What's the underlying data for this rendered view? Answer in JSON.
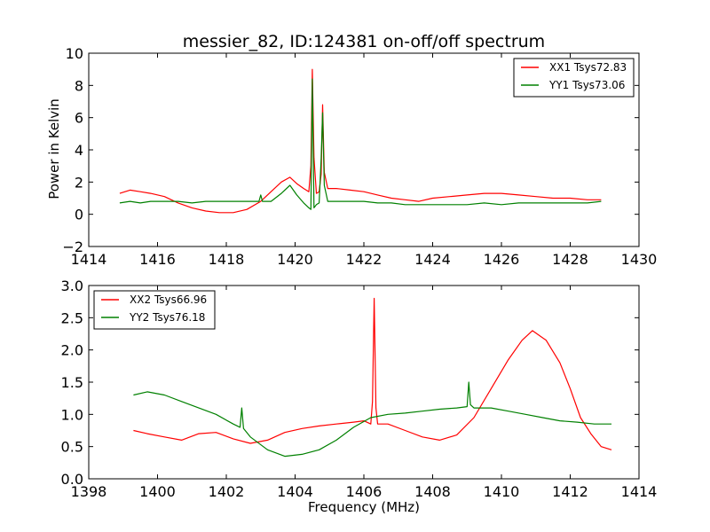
{
  "title": "messier_82, ID:124381 on-off/off spectrum",
  "chart_data": [
    {
      "type": "line",
      "ylabel": "Power in Kelvin",
      "xlabel": "",
      "xlim": [
        1414,
        1430
      ],
      "ylim": [
        -2,
        10
      ],
      "x_ticks": [
        1414,
        1416,
        1418,
        1420,
        1422,
        1424,
        1426,
        1428,
        1430
      ],
      "y_ticks": [
        -2,
        0,
        2,
        4,
        6,
        8,
        10
      ],
      "legend_position": "top-right",
      "series": [
        {
          "name": "XX1 Tsys72.83",
          "color": "#ff0000",
          "x": [
            1414.9,
            1415.2,
            1415.5,
            1415.8,
            1416.2,
            1416.6,
            1417.0,
            1417.4,
            1417.8,
            1418.2,
            1418.6,
            1419.0,
            1419.3,
            1419.6,
            1419.85,
            1420.05,
            1420.25,
            1420.4,
            1420.46,
            1420.5,
            1420.55,
            1420.62,
            1420.7,
            1420.76,
            1420.8,
            1420.85,
            1420.95,
            1421.2,
            1421.6,
            1422.0,
            1422.4,
            1422.8,
            1423.2,
            1423.6,
            1424.0,
            1424.5,
            1425.0,
            1425.5,
            1426.0,
            1426.5,
            1427.0,
            1427.5,
            1428.0,
            1428.5,
            1428.9
          ],
          "y": [
            1.3,
            1.5,
            1.4,
            1.3,
            1.1,
            0.7,
            0.4,
            0.2,
            0.1,
            0.1,
            0.3,
            0.8,
            1.4,
            2.0,
            2.3,
            1.9,
            1.6,
            1.4,
            3.0,
            9.0,
            3.5,
            1.3,
            1.4,
            2.5,
            6.8,
            2.6,
            1.6,
            1.6,
            1.5,
            1.4,
            1.2,
            1.0,
            0.9,
            0.8,
            1.0,
            1.1,
            1.2,
            1.3,
            1.3,
            1.2,
            1.1,
            1.0,
            1.0,
            0.9,
            0.9
          ]
        },
        {
          "name": "YY1 Tsys73.06",
          "color": "#008000",
          "x": [
            1414.9,
            1415.2,
            1415.5,
            1415.8,
            1416.2,
            1416.6,
            1417.0,
            1417.4,
            1417.8,
            1418.2,
            1418.6,
            1418.95,
            1419.0,
            1419.05,
            1419.3,
            1419.6,
            1419.85,
            1420.05,
            1420.25,
            1420.4,
            1420.46,
            1420.5,
            1420.55,
            1420.62,
            1420.7,
            1420.76,
            1420.8,
            1420.85,
            1420.95,
            1421.2,
            1421.6,
            1422.0,
            1422.4,
            1422.8,
            1423.2,
            1423.6,
            1424.0,
            1424.5,
            1425.0,
            1425.5,
            1426.0,
            1426.5,
            1427.0,
            1427.5,
            1428.0,
            1428.5,
            1428.9
          ],
          "y": [
            0.7,
            0.8,
            0.7,
            0.8,
            0.8,
            0.8,
            0.7,
            0.8,
            0.8,
            0.8,
            0.8,
            0.8,
            1.2,
            0.8,
            0.8,
            1.3,
            1.8,
            1.2,
            0.7,
            0.4,
            0.3,
            8.4,
            0.4,
            0.6,
            0.7,
            3.5,
            6.3,
            1.8,
            0.8,
            0.8,
            0.8,
            0.8,
            0.7,
            0.7,
            0.6,
            0.6,
            0.6,
            0.6,
            0.6,
            0.7,
            0.6,
            0.7,
            0.7,
            0.7,
            0.7,
            0.7,
            0.8
          ]
        }
      ]
    },
    {
      "type": "line",
      "ylabel": "",
      "xlabel": "Frequency (MHz)",
      "xlim": [
        1398,
        1414
      ],
      "ylim": [
        0.0,
        3.0
      ],
      "x_ticks": [
        1398,
        1400,
        1402,
        1404,
        1406,
        1408,
        1410,
        1412,
        1414
      ],
      "y_ticks": [
        0.0,
        0.5,
        1.0,
        1.5,
        2.0,
        2.5,
        3.0
      ],
      "legend_position": "top-left",
      "series": [
        {
          "name": "XX2 Tsys66.96",
          "color": "#ff0000",
          "x": [
            1399.3,
            1399.7,
            1400.2,
            1400.7,
            1401.2,
            1401.7,
            1402.2,
            1402.7,
            1403.2,
            1403.7,
            1404.2,
            1404.7,
            1405.2,
            1405.7,
            1406.0,
            1406.2,
            1406.25,
            1406.3,
            1406.35,
            1406.4,
            1406.7,
            1407.2,
            1407.7,
            1408.2,
            1408.7,
            1409.2,
            1409.7,
            1410.2,
            1410.6,
            1410.9,
            1411.3,
            1411.7,
            1412.0,
            1412.3,
            1412.6,
            1412.9,
            1413.2
          ],
          "y": [
            0.75,
            0.7,
            0.65,
            0.6,
            0.7,
            0.72,
            0.62,
            0.55,
            0.6,
            0.72,
            0.78,
            0.82,
            0.85,
            0.88,
            0.9,
            0.85,
            1.2,
            2.8,
            1.1,
            0.85,
            0.85,
            0.75,
            0.65,
            0.6,
            0.68,
            0.95,
            1.4,
            1.85,
            2.15,
            2.3,
            2.15,
            1.8,
            1.4,
            0.95,
            0.7,
            0.5,
            0.45
          ]
        },
        {
          "name": "YY2 Tsys76.18",
          "color": "#008000",
          "x": [
            1399.3,
            1399.7,
            1400.2,
            1400.7,
            1401.2,
            1401.7,
            1402.2,
            1402.4,
            1402.45,
            1402.5,
            1402.7,
            1403.2,
            1403.7,
            1404.2,
            1404.7,
            1405.2,
            1405.7,
            1406.2,
            1406.7,
            1407.2,
            1407.7,
            1408.2,
            1408.7,
            1409.0,
            1409.05,
            1409.1,
            1409.2,
            1409.7,
            1410.2,
            1410.7,
            1411.2,
            1411.7,
            1412.2,
            1412.7,
            1413.2
          ],
          "y": [
            1.3,
            1.35,
            1.3,
            1.2,
            1.1,
            1.0,
            0.85,
            0.8,
            1.1,
            0.78,
            0.65,
            0.45,
            0.35,
            0.38,
            0.45,
            0.6,
            0.8,
            0.95,
            1.0,
            1.02,
            1.05,
            1.08,
            1.1,
            1.12,
            1.5,
            1.15,
            1.1,
            1.1,
            1.05,
            1.0,
            0.95,
            0.9,
            0.88,
            0.85,
            0.85
          ]
        }
      ]
    }
  ]
}
